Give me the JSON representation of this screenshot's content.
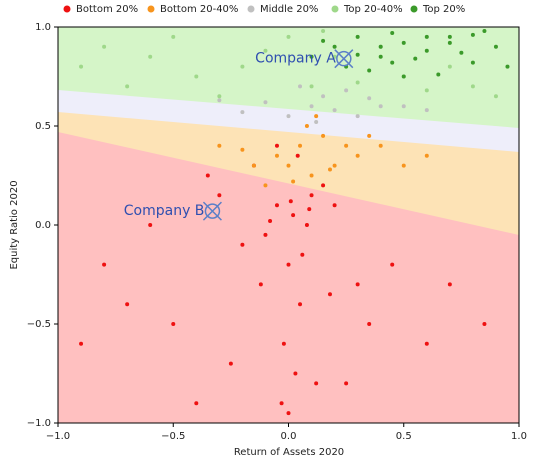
{
  "chart_data": {
    "type": "scatter",
    "x_label": "Return of Assets 2020",
    "y_label": "Equity Ratio 2020",
    "xlim": [
      -1,
      1
    ],
    "ylim": [
      -1,
      1
    ],
    "xticks": [
      {
        "value": -1,
        "label": "−1.0"
      },
      {
        "value": -0.5,
        "label": "−0.5"
      },
      {
        "value": 0,
        "label": "0.0"
      },
      {
        "value": 0.5,
        "label": "0.5"
      },
      {
        "value": 1,
        "label": "1.0"
      }
    ],
    "yticks": [
      {
        "value": -1,
        "label": "−1.0"
      },
      {
        "value": -0.5,
        "label": "−0.5"
      },
      {
        "value": 0,
        "label": "0.0"
      },
      {
        "value": 0.5,
        "label": "0.5"
      },
      {
        "value": 1,
        "label": "1.0"
      }
    ],
    "legend": "top",
    "series": [
      {
        "name": "Bottom 20%",
        "color": "#ee1111",
        "x": [
          0.02,
          -0.05,
          0.08,
          0.1,
          -0.1,
          0.0,
          0.05,
          -0.02,
          0.15,
          -0.2,
          0.3,
          -0.35,
          -0.5,
          0.45,
          -0.7,
          0.6,
          -0.15,
          0.12,
          -0.03,
          0.04,
          -0.25,
          0.2,
          -0.6,
          0.35,
          -0.8,
          0.7,
          0.0,
          -0.05,
          0.06,
          -0.4,
          0.25,
          -0.12,
          0.09,
          -0.9,
          0.85,
          -0.3,
          0.18,
          -0.08,
          0.01,
          0.03
        ],
        "values": [
          0.05,
          0.1,
          0.0,
          0.15,
          -0.05,
          -0.2,
          -0.4,
          -0.6,
          0.2,
          -0.1,
          -0.3,
          0.25,
          -0.5,
          -0.2,
          -0.4,
          -0.6,
          0.3,
          -0.8,
          -0.9,
          0.35,
          -0.7,
          0.1,
          0.0,
          -0.5,
          -0.2,
          -0.3,
          -0.95,
          0.4,
          -0.15,
          -0.9,
          -0.8,
          -0.3,
          0.08,
          -0.6,
          -0.5,
          0.15,
          -0.35,
          0.02,
          0.12,
          -0.75
        ]
      },
      {
        "name": "Bottom 20-40%",
        "color": "#f7941d",
        "x": [
          0.0,
          0.05,
          0.1,
          -0.05,
          0.15,
          0.2,
          -0.1,
          0.25,
          0.3,
          0.08,
          -0.15,
          0.4,
          0.5,
          0.02,
          0.12,
          -0.2,
          0.6,
          0.18,
          0.35,
          -0.3
        ],
        "values": [
          0.3,
          0.4,
          0.25,
          0.35,
          0.45,
          0.3,
          0.2,
          0.4,
          0.35,
          0.5,
          0.3,
          0.4,
          0.3,
          0.22,
          0.55,
          0.38,
          0.35,
          0.28,
          0.45,
          0.4
        ]
      },
      {
        "name": "Middle 20%",
        "color": "#c0c0c0",
        "x": [
          0.0,
          0.1,
          0.2,
          -0.1,
          0.3,
          0.15,
          0.05,
          0.4,
          -0.2,
          0.25,
          0.5,
          -0.3,
          0.35,
          0.12,
          0.6
        ],
        "values": [
          0.55,
          0.6,
          0.58,
          0.62,
          0.55,
          0.65,
          0.7,
          0.6,
          0.57,
          0.68,
          0.6,
          0.63,
          0.64,
          0.52,
          0.58
        ]
      },
      {
        "name": "Top 20-40%",
        "color": "#9fd88a",
        "x": [
          -0.8,
          -0.6,
          -0.4,
          -0.2,
          0.0,
          0.1,
          0.2,
          0.3,
          -0.5,
          -0.3,
          0.5,
          0.6,
          0.7,
          0.8,
          -0.1,
          0.4,
          -0.7,
          0.9,
          0.15,
          -0.9
        ],
        "values": [
          0.9,
          0.85,
          0.75,
          0.8,
          0.95,
          0.7,
          0.85,
          0.72,
          0.95,
          0.65,
          0.75,
          0.68,
          0.8,
          0.7,
          0.88,
          0.9,
          0.7,
          0.65,
          0.98,
          0.8
        ]
      },
      {
        "name": "Top 20%",
        "color": "#3b9a2a",
        "x": [
          0.2,
          0.3,
          0.4,
          0.5,
          0.6,
          0.7,
          0.8,
          0.9,
          0.25,
          0.35,
          0.45,
          0.55,
          0.65,
          0.75,
          0.85,
          0.15,
          0.5,
          0.6,
          0.3,
          0.4,
          0.7,
          0.95,
          0.1,
          0.8,
          0.45
        ],
        "values": [
          0.9,
          0.95,
          0.85,
          0.92,
          0.88,
          0.95,
          0.82,
          0.9,
          0.8,
          0.78,
          0.97,
          0.84,
          0.76,
          0.87,
          0.98,
          0.93,
          0.75,
          0.95,
          0.86,
          0.9,
          0.92,
          0.8,
          0.85,
          0.96,
          0.82
        ]
      }
    ],
    "annotations": [
      {
        "text": "Company A",
        "x": 0.24,
        "y": 0.84
      },
      {
        "text": "Company B",
        "x": -0.33,
        "y": 0.07
      }
    ]
  }
}
